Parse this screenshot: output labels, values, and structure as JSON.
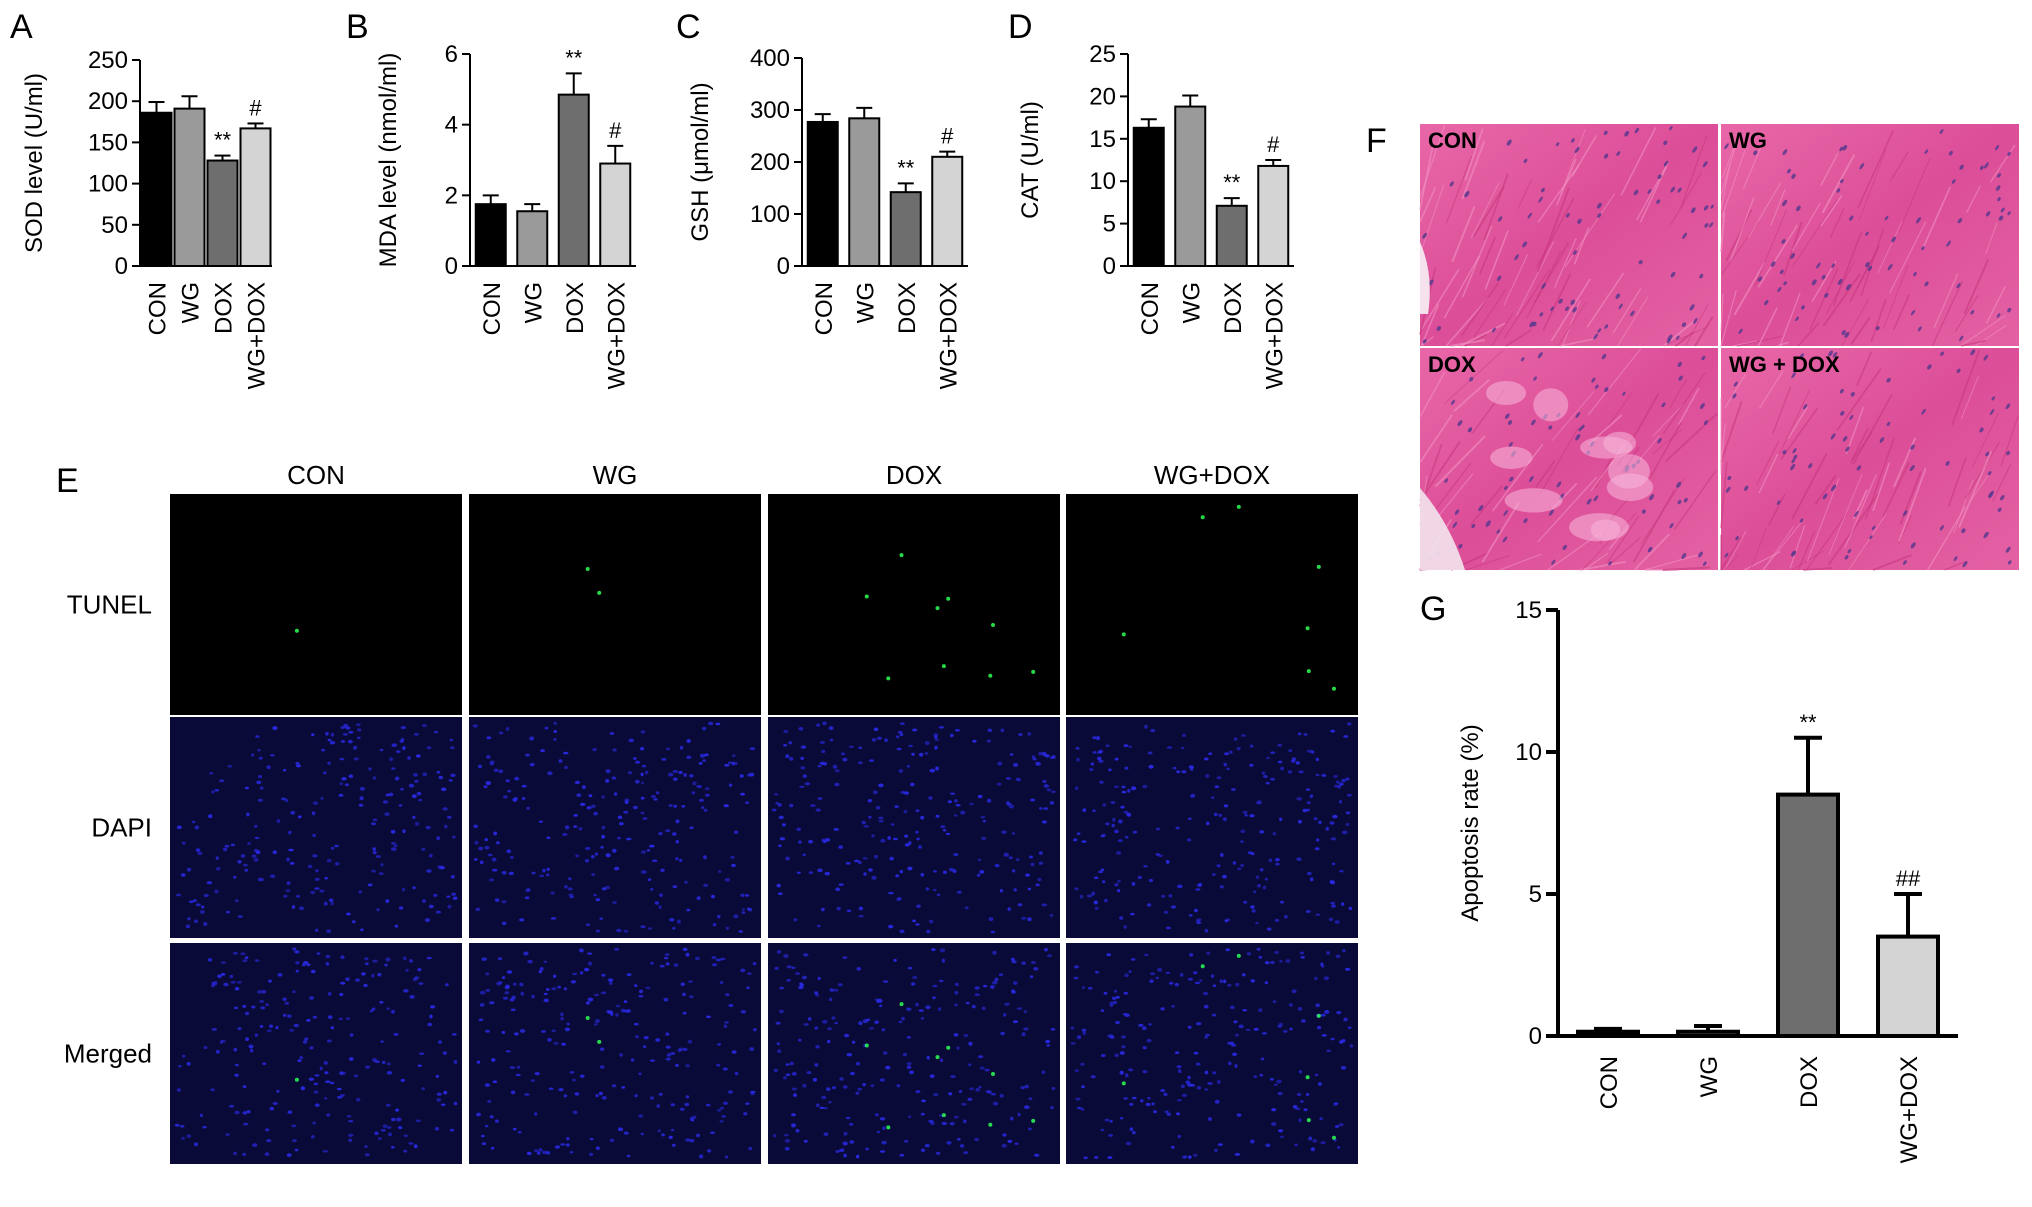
{
  "figure": {
    "panel_letters": {
      "A": "A",
      "B": "B",
      "C": "C",
      "D": "D",
      "E": "E",
      "F": "F",
      "G": "G"
    }
  },
  "chart_data": [
    {
      "id": "A",
      "type": "bar",
      "categories": [
        "CON",
        "WG",
        "DOX",
        "WG+DOX"
      ],
      "values": [
        186,
        191,
        128,
        167
      ],
      "errors": [
        13,
        15,
        6,
        6
      ],
      "significance": [
        "",
        "",
        "**",
        "#"
      ],
      "ylabel": "SOD level (U/ml)",
      "ylim": [
        0,
        250
      ],
      "yticks": [
        0,
        50,
        100,
        150,
        200,
        250
      ],
      "colors": [
        "#000000",
        "#9a9a9a",
        "#6e6e6e",
        "#d4d4d4"
      ]
    },
    {
      "id": "B",
      "type": "bar",
      "categories": [
        "CON",
        "WG",
        "DOX",
        "WG+DOX"
      ],
      "values": [
        1.75,
        1.55,
        4.85,
        2.9
      ],
      "errors": [
        0.25,
        0.2,
        0.6,
        0.5
      ],
      "significance": [
        "",
        "",
        "**",
        "#"
      ],
      "ylabel": "MDA level (nmol/ml)",
      "ylim": [
        0,
        6
      ],
      "yticks": [
        0,
        2,
        4,
        6
      ],
      "colors": [
        "#000000",
        "#9a9a9a",
        "#6e6e6e",
        "#d4d4d4"
      ]
    },
    {
      "id": "C",
      "type": "bar",
      "categories": [
        "CON",
        "WG",
        "DOX",
        "WG+DOX"
      ],
      "values": [
        277,
        284,
        142,
        210
      ],
      "errors": [
        15,
        20,
        17,
        10
      ],
      "significance": [
        "",
        "",
        "**",
        "#"
      ],
      "ylabel": "GSH (μmol/ml)",
      "ylim": [
        0,
        400
      ],
      "yticks": [
        0,
        100,
        200,
        300,
        400
      ],
      "colors": [
        "#000000",
        "#9a9a9a",
        "#6e6e6e",
        "#d4d4d4"
      ]
    },
    {
      "id": "D",
      "type": "bar",
      "categories": [
        "CON",
        "WG",
        "DOX",
        "WG+DOX"
      ],
      "values": [
        16.3,
        18.8,
        7.1,
        11.8
      ],
      "errors": [
        1.0,
        1.3,
        0.9,
        0.7
      ],
      "significance": [
        "",
        "",
        "**",
        "#"
      ],
      "ylabel": "CAT (U/ml)",
      "ylim": [
        0,
        25
      ],
      "yticks": [
        0,
        5,
        10,
        15,
        20,
        25
      ],
      "colors": [
        "#000000",
        "#9a9a9a",
        "#6e6e6e",
        "#d4d4d4"
      ]
    },
    {
      "id": "G",
      "type": "bar",
      "categories": [
        "CON",
        "WG",
        "DOX",
        "WG+DOX"
      ],
      "values": [
        0.15,
        0.15,
        8.5,
        3.5
      ],
      "errors": [
        0.1,
        0.2,
        2.0,
        1.5
      ],
      "significance": [
        "",
        "",
        "**",
        "##"
      ],
      "ylabel": "Apoptosis rate (%)",
      "ylim": [
        0,
        15
      ],
      "yticks": [
        0,
        5,
        10,
        15
      ],
      "colors": [
        "#000000",
        "#9a9a9a",
        "#6e6e6e",
        "#d4d4d4"
      ]
    }
  ],
  "panel_e": {
    "columns": [
      "CON",
      "WG",
      "DOX",
      "WG+DOX"
    ],
    "rows": [
      "TUNEL",
      "DAPI",
      "Merged"
    ],
    "tunel_color": "#000000",
    "dapi_color": "#0a0a38",
    "nucleus_color": "#2a2ae6",
    "positive_color": "#2cff55"
  },
  "panel_f": {
    "labels": [
      "CON",
      "WG",
      "DOX",
      "WG + DOX"
    ],
    "tissue_color": "#e4549e",
    "nucleus_color": "#5a3a8e"
  }
}
